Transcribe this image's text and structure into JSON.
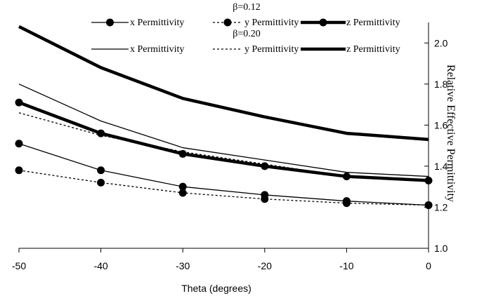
{
  "chart_data": {
    "type": "line",
    "xlabel": "Theta (degrees)",
    "ylabel": "Relative Effective Permittivity",
    "x": [
      -50,
      -40,
      -30,
      -20,
      -10,
      0
    ],
    "xlim": [
      -50,
      0
    ],
    "ylim": [
      1.0,
      2.1
    ],
    "xticks": [
      "-50",
      "-40",
      "-30",
      "-20",
      "-10",
      "0"
    ],
    "yticks": [
      "1.0",
      "1.2",
      "1.4",
      "1.6",
      "1.8",
      "2.0"
    ],
    "grid": false,
    "y_axis_side": "right",
    "legend_position": "top",
    "legend_groups": [
      {
        "title": "β=0.12",
        "entries": [
          {
            "series": 0,
            "label": "x Permittivity"
          },
          {
            "series": 1,
            "label": "y Permittivity"
          },
          {
            "series": 2,
            "label": "z Permittivity"
          }
        ]
      },
      {
        "title": "β=0.20",
        "entries": [
          {
            "series": 3,
            "label": "x Permittivity"
          },
          {
            "series": 4,
            "label": "y Permittivity"
          },
          {
            "series": 5,
            "label": "z Permittivity"
          }
        ]
      }
    ],
    "series": [
      {
        "group": "β=0.12",
        "name": "x Permittivity",
        "style": "solid-thin",
        "marker": "circle",
        "values": [
          1.51,
          1.38,
          1.3,
          1.26,
          1.23,
          1.21
        ]
      },
      {
        "group": "β=0.12",
        "name": "y Permittivity",
        "style": "dotted-thin",
        "marker": "circle",
        "values": [
          1.38,
          1.32,
          1.27,
          1.24,
          1.22,
          1.21
        ]
      },
      {
        "group": "β=0.12",
        "name": "z Permittivity",
        "style": "solid-thick",
        "marker": "circle",
        "values": [
          1.71,
          1.56,
          1.46,
          1.4,
          1.35,
          1.33
        ]
      },
      {
        "group": "β=0.20",
        "name": "x Permittivity",
        "style": "solid-thin",
        "marker": "none",
        "values": [
          1.8,
          1.62,
          1.49,
          1.43,
          1.37,
          1.35
        ]
      },
      {
        "group": "β=0.20",
        "name": "y Permittivity",
        "style": "dotted-thin",
        "marker": "none",
        "values": [
          1.66,
          1.55,
          1.47,
          1.41,
          1.35,
          1.33
        ]
      },
      {
        "group": "β=0.20",
        "name": "z Permittivity",
        "style": "solid-thick",
        "marker": "none",
        "values": [
          2.08,
          1.88,
          1.73,
          1.64,
          1.56,
          1.53
        ]
      }
    ]
  }
}
